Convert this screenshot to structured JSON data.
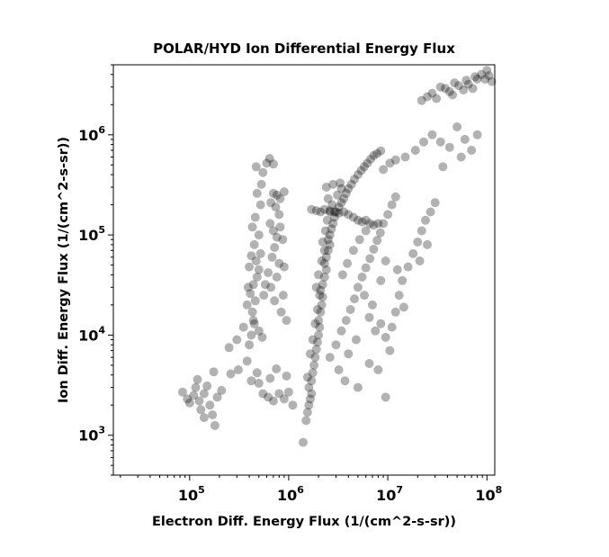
{
  "chart_data": {
    "type": "scatter",
    "title": "POLAR/HYD  Ion Differential Energy Flux",
    "xlabel": "Electron Diff. Energy Flux (1/(cm^2-s-sr))",
    "ylabel": "Ion Diff. Energy Flux (1/(cm^2-s-sr))",
    "x_scale": "log",
    "y_scale": "log",
    "xlim": [
      17000,
      120000000
    ],
    "ylim": [
      400,
      5000000
    ],
    "x_ticks": [
      {
        "base": "10",
        "exp": "5",
        "value": 100000
      },
      {
        "base": "10",
        "exp": "6",
        "value": 1000000
      },
      {
        "base": "10",
        "exp": "7",
        "value": 10000000
      },
      {
        "base": "10",
        "exp": "8",
        "value": 100000000
      }
    ],
    "y_ticks": [
      {
        "base": "10",
        "exp": "3",
        "value": 1000
      },
      {
        "base": "10",
        "exp": "4",
        "value": 10000
      },
      {
        "base": "10",
        "exp": "5",
        "value": 100000
      },
      {
        "base": "10",
        "exp": "6",
        "value": 1000000
      }
    ],
    "marker_color": "#000000",
    "marker_alpha": 0.3,
    "grid": false,
    "legend": false,
    "points": [
      [
        85000,
        2700
      ],
      [
        95000,
        2300
      ],
      [
        100000,
        2100
      ],
      [
        110000,
        2500
      ],
      [
        115000,
        3000
      ],
      [
        125000,
        2200
      ],
      [
        130000,
        1800
      ],
      [
        140000,
        2600
      ],
      [
        150000,
        3100
      ],
      [
        160000,
        2000
      ],
      [
        170000,
        1600
      ],
      [
        180000,
        1250
      ],
      [
        190000,
        2400
      ],
      [
        120000,
        3600
      ],
      [
        175000,
        4300
      ],
      [
        210000,
        2800
      ],
      [
        140000,
        1500
      ],
      [
        250000,
        7500
      ],
      [
        300000,
        9000
      ],
      [
        350000,
        12000
      ],
      [
        310000,
        4500
      ],
      [
        380000,
        5500
      ],
      [
        260000,
        4100
      ],
      [
        420000,
        3500
      ],
      [
        500000,
        3300
      ],
      [
        550000,
        2600
      ],
      [
        620000,
        2400
      ],
      [
        700000,
        2200
      ],
      [
        800000,
        2600
      ],
      [
        900000,
        2300
      ],
      [
        1000000,
        2700
      ],
      [
        1100000,
        2000
      ],
      [
        650000,
        3700
      ],
      [
        480000,
        4200
      ],
      [
        750000,
        4600
      ],
      [
        950000,
        3900
      ],
      [
        400000,
        8000
      ],
      [
        420000,
        10000
      ],
      [
        450000,
        13000
      ],
      [
        430000,
        17000
      ],
      [
        460000,
        22000
      ],
      [
        410000,
        26000
      ],
      [
        440000,
        32000
      ],
      [
        480000,
        38000
      ],
      [
        500000,
        45000
      ],
      [
        470000,
        55000
      ],
      [
        520000,
        65000
      ],
      [
        450000,
        80000
      ],
      [
        500000,
        100000
      ],
      [
        430000,
        120000
      ],
      [
        460000,
        150000
      ],
      [
        520000,
        200000
      ],
      [
        480000,
        260000
      ],
      [
        530000,
        320000
      ],
      [
        550000,
        420000
      ],
      [
        470000,
        480000
      ],
      [
        600000,
        520000
      ],
      [
        640000,
        580000
      ],
      [
        700000,
        510000
      ],
      [
        560000,
        25000
      ],
      [
        580000,
        32000
      ],
      [
        620000,
        42000
      ],
      [
        390000,
        30000
      ],
      [
        400000,
        48000
      ],
      [
        420000,
        62000
      ],
      [
        380000,
        20000
      ],
      [
        440000,
        14000
      ],
      [
        500000,
        11000
      ],
      [
        540000,
        9500
      ],
      [
        700000,
        260000
      ],
      [
        760000,
        250000
      ],
      [
        820000,
        230000
      ],
      [
        900000,
        270000
      ],
      [
        660000,
        210000
      ],
      [
        740000,
        190000
      ],
      [
        800000,
        160000
      ],
      [
        650000,
        130000
      ],
      [
        700000,
        110000
      ],
      [
        760000,
        95000
      ],
      [
        820000,
        120000
      ],
      [
        870000,
        90000
      ],
      [
        720000,
        75000
      ],
      [
        680000,
        60000
      ],
      [
        800000,
        52000
      ],
      [
        900000,
        48000
      ],
      [
        760000,
        38000
      ],
      [
        660000,
        30000
      ],
      [
        880000,
        25000
      ],
      [
        720000,
        22000
      ],
      [
        840000,
        17000
      ],
      [
        950000,
        14000
      ],
      [
        1400000,
        850
      ],
      [
        1500000,
        1400
      ],
      [
        1550000,
        1700
      ],
      [
        1600000,
        2000
      ],
      [
        1650000,
        2300
      ],
      [
        1700000,
        2600
      ],
      [
        1600000,
        3000
      ],
      [
        1700000,
        3500
      ],
      [
        1750000,
        4200
      ],
      [
        1800000,
        5000
      ],
      [
        1850000,
        6000
      ],
      [
        1900000,
        7200
      ],
      [
        1950000,
        8500
      ],
      [
        2000000,
        10000
      ],
      [
        2050000,
        12000
      ],
      [
        2000000,
        14000
      ],
      [
        2100000,
        17000
      ],
      [
        2150000,
        20000
      ],
      [
        2200000,
        24000
      ],
      [
        2100000,
        28000
      ],
      [
        2200000,
        32000
      ],
      [
        2300000,
        38000
      ],
      [
        2400000,
        45000
      ],
      [
        2300000,
        52000
      ],
      [
        2400000,
        60000
      ],
      [
        2500000,
        70000
      ],
      [
        2600000,
        80000
      ],
      [
        2500000,
        90000
      ],
      [
        2600000,
        100000
      ],
      [
        2700000,
        115000
      ],
      [
        2800000,
        130000
      ],
      [
        2900000,
        150000
      ],
      [
        3000000,
        170000
      ],
      [
        3200000,
        190000
      ],
      [
        3400000,
        210000
      ],
      [
        3600000,
        230000
      ],
      [
        3800000,
        260000
      ],
      [
        4000000,
        290000
      ],
      [
        4300000,
        320000
      ],
      [
        4600000,
        360000
      ],
      [
        5000000,
        400000
      ],
      [
        5400000,
        440000
      ],
      [
        5800000,
        480000
      ],
      [
        6200000,
        520000
      ],
      [
        6700000,
        570000
      ],
      [
        7200000,
        620000
      ],
      [
        7800000,
        650000
      ],
      [
        8500000,
        690000
      ],
      [
        1550000,
        3800
      ],
      [
        1650000,
        6500
      ],
      [
        1750000,
        9000
      ],
      [
        1850000,
        13000
      ],
      [
        1950000,
        18000
      ],
      [
        2050000,
        25000
      ],
      [
        1900000,
        30000
      ],
      [
        2000000,
        40000
      ],
      [
        2150000,
        55000
      ],
      [
        2300000,
        70000
      ],
      [
        2200000,
        85000
      ],
      [
        2350000,
        110000
      ],
      [
        2450000,
        140000
      ],
      [
        2600000,
        170000
      ],
      [
        2750000,
        200000
      ],
      [
        2500000,
        230000
      ],
      [
        3100000,
        250000
      ],
      [
        3400000,
        290000
      ],
      [
        1700000,
        180000
      ],
      [
        1900000,
        175000
      ],
      [
        2100000,
        170000
      ],
      [
        2300000,
        180000
      ],
      [
        2600000,
        175000
      ],
      [
        2900000,
        170000
      ],
      [
        3200000,
        165000
      ],
      [
        3600000,
        170000
      ],
      [
        4000000,
        160000
      ],
      [
        4500000,
        150000
      ],
      [
        5000000,
        140000
      ],
      [
        5500000,
        135000
      ],
      [
        6000000,
        140000
      ],
      [
        6600000,
        130000
      ],
      [
        7200000,
        125000
      ],
      [
        8000000,
        130000
      ],
      [
        2400000,
        300000
      ],
      [
        2800000,
        320000
      ],
      [
        3300000,
        330000
      ],
      [
        2600000,
        6000
      ],
      [
        3000000,
        8000
      ],
      [
        3400000,
        11000
      ],
      [
        3800000,
        14000
      ],
      [
        4200000,
        18000
      ],
      [
        4600000,
        23000
      ],
      [
        5000000,
        30000
      ],
      [
        5500000,
        38000
      ],
      [
        6000000,
        47000
      ],
      [
        6600000,
        58000
      ],
      [
        7200000,
        72000
      ],
      [
        7800000,
        88000
      ],
      [
        8400000,
        105000
      ],
      [
        9000000,
        130000
      ],
      [
        10000000,
        160000
      ],
      [
        11000000,
        200000
      ],
      [
        12000000,
        240000
      ],
      [
        5200000,
        90000
      ],
      [
        6000000,
        110000
      ],
      [
        4500000,
        70000
      ],
      [
        3900000,
        52000
      ],
      [
        3500000,
        40000
      ],
      [
        5800000,
        25000
      ],
      [
        7000000,
        20000
      ],
      [
        8500000,
        35000
      ],
      [
        9500000,
        55000
      ],
      [
        3200000,
        4500
      ],
      [
        4000000,
        6500
      ],
      [
        4800000,
        9000
      ],
      [
        6500000,
        15000
      ],
      [
        7500000,
        11000
      ],
      [
        8500000,
        13000
      ],
      [
        9500000,
        9500
      ],
      [
        11000000,
        12000
      ],
      [
        12000000,
        17000
      ],
      [
        13000000,
        25000
      ],
      [
        14000000,
        35000
      ],
      [
        16000000,
        48000
      ],
      [
        18000000,
        65000
      ],
      [
        20000000,
        85000
      ],
      [
        22000000,
        110000
      ],
      [
        24000000,
        140000
      ],
      [
        27000000,
        170000
      ],
      [
        30000000,
        210000
      ],
      [
        25000000,
        80000
      ],
      [
        21000000,
        55000
      ],
      [
        12500000,
        45000
      ],
      [
        14500000,
        19000
      ],
      [
        8000000,
        4500
      ],
      [
        9500000,
        2400
      ],
      [
        10500000,
        7000
      ],
      [
        3700000,
        3500
      ],
      [
        5000000,
        3000
      ],
      [
        6500000,
        5200
      ],
      [
        9000000,
        450000
      ],
      [
        10500000,
        520000
      ],
      [
        12000000,
        560000
      ],
      [
        15000000,
        600000
      ],
      [
        19000000,
        700000
      ],
      [
        23000000,
        850000
      ],
      [
        28000000,
        1000000
      ],
      [
        34000000,
        850000
      ],
      [
        42000000,
        750000
      ],
      [
        50000000,
        1200000
      ],
      [
        60000000,
        900000
      ],
      [
        70000000,
        700000
      ],
      [
        80000000,
        1000000
      ],
      [
        36000000,
        480000
      ],
      [
        55000000,
        600000
      ],
      [
        22000000,
        2200000
      ],
      [
        25000000,
        2400000
      ],
      [
        28000000,
        2600000
      ],
      [
        31000000,
        2300000
      ],
      [
        34000000,
        3000000
      ],
      [
        38000000,
        2900000
      ],
      [
        42000000,
        2700000
      ],
      [
        47000000,
        3300000
      ],
      [
        52000000,
        3100000
      ],
      [
        58000000,
        2800000
      ],
      [
        65000000,
        3200000
      ],
      [
        72000000,
        2900000
      ],
      [
        80000000,
        3600000
      ],
      [
        88000000,
        4000000
      ],
      [
        96000000,
        3600000
      ],
      [
        105000000,
        3900000
      ],
      [
        112000000,
        3400000
      ],
      [
        45000000,
        2500000
      ],
      [
        62000000,
        3500000
      ],
      [
        76000000,
        3800000
      ],
      [
        100000000,
        4400000
      ]
    ]
  }
}
